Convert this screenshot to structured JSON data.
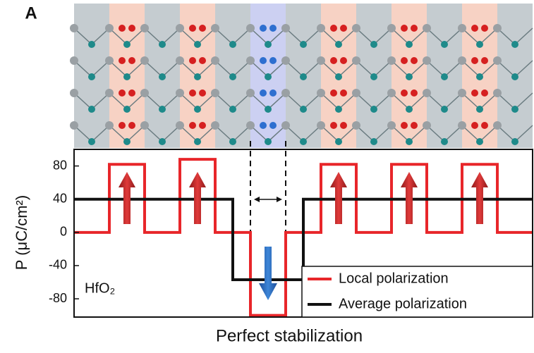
{
  "chart_data": {
    "type": "step",
    "panel_label": "A",
    "ylabel": "P (μC/cm²)",
    "xlabel": "Perfect stabilization",
    "annotation": "HfO₂",
    "xlim": [
      0,
      13
    ],
    "ylim": [
      -102,
      100
    ],
    "yticks": [
      80,
      40,
      0,
      -40,
      -80
    ],
    "series": [
      {
        "name": "Local polarization",
        "color": "#e8262a",
        "x": [
          0,
          1,
          2,
          3,
          4,
          5,
          6,
          7,
          8,
          9,
          10,
          11,
          12
        ],
        "values": [
          0,
          82,
          0,
          88,
          0,
          -100,
          0,
          82,
          0,
          82,
          0,
          82,
          0
        ]
      },
      {
        "name": "Average polarization",
        "color": "#111111",
        "x": [
          0,
          4.5,
          6.5
        ],
        "values": [
          40,
          -57,
          40
        ]
      }
    ],
    "legend": "lower-right"
  }
}
